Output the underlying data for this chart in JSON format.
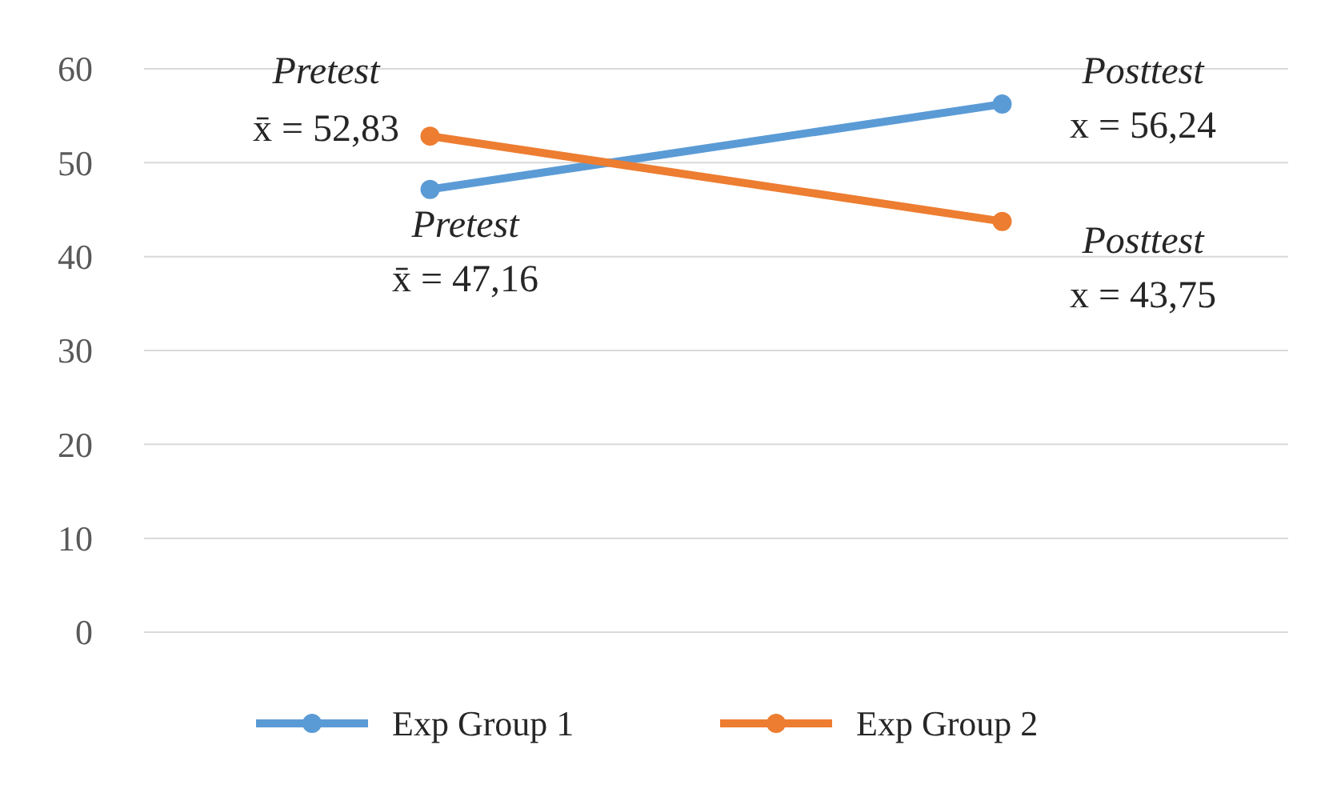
{
  "chart_data": {
    "type": "line",
    "categories": [
      null,
      null
    ],
    "series": [
      {
        "name": "Exp Group 1",
        "color": "#5b9bd5",
        "values": [
          47.16,
          56.24
        ]
      },
      {
        "name": "Exp Group 2",
        "color": "#ed7d31",
        "values": [
          52.83,
          43.75
        ]
      }
    ],
    "ylim": [
      0,
      60
    ],
    "yticks": [
      0,
      10,
      20,
      30,
      40,
      50,
      60
    ],
    "grid": "y",
    "legend": "bottom",
    "marker": "circle",
    "line_style": "solid",
    "annotations": [
      "Pretest\nx̄ = 52,83",
      "Pretest\nx̄ = 47,16",
      "Posttest\nx = 56,24",
      "Posttest\nx = 43,75"
    ]
  }
}
